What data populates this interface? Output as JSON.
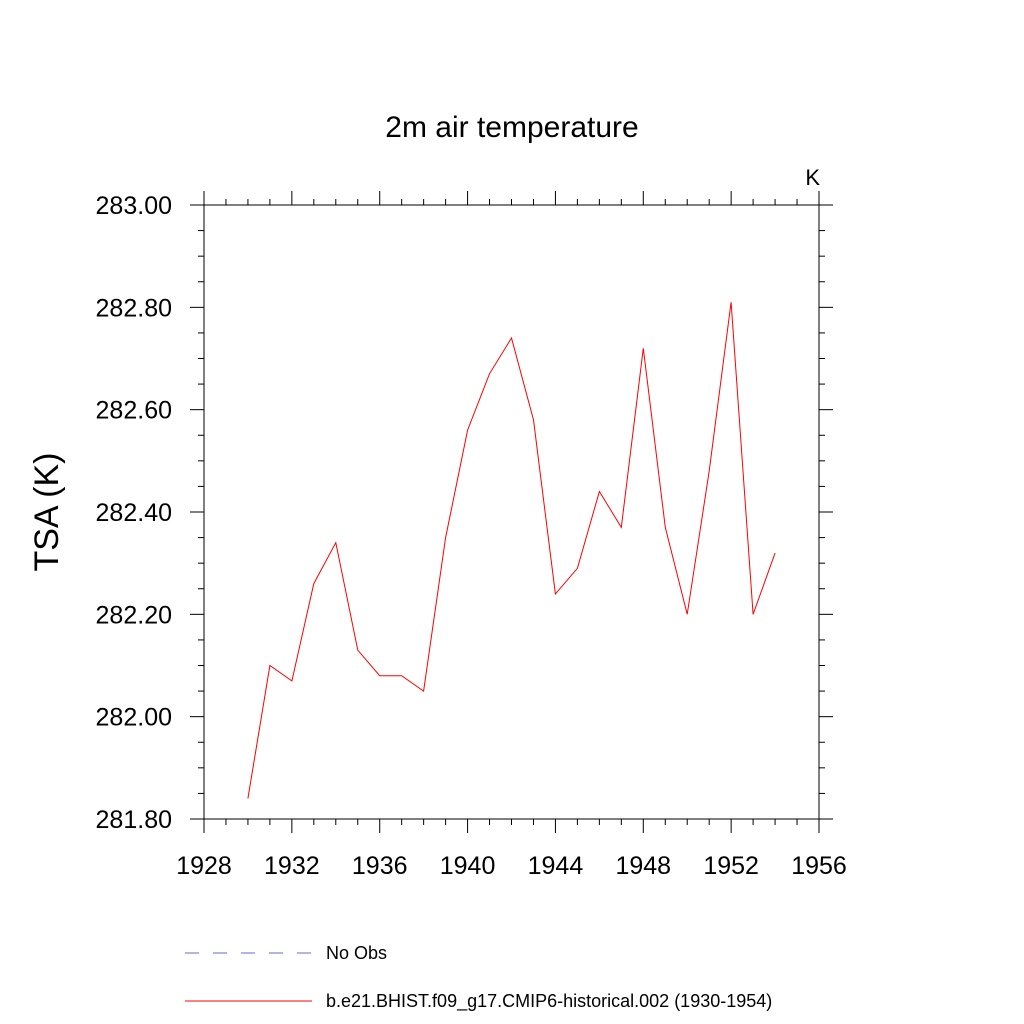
{
  "chart_data": {
    "type": "line",
    "title": "2m air temperature",
    "xlabel": "",
    "ylabel": "TSA  (K)",
    "units_label": "K",
    "xlim": [
      1928,
      1956
    ],
    "ylim": [
      281.8,
      283.0
    ],
    "x_ticks": [
      1928,
      1932,
      1936,
      1940,
      1944,
      1948,
      1952,
      1956
    ],
    "x_tick_labels": [
      "1928",
      "1932",
      "1936",
      "1940",
      "1944",
      "1948",
      "1952",
      "1956"
    ],
    "y_ticks": [
      281.8,
      282.0,
      282.2,
      282.4,
      282.6,
      282.8,
      283.0
    ],
    "y_tick_labels": [
      "281.80",
      "282.00",
      "282.20",
      "282.40",
      "282.60",
      "282.80",
      "283.00"
    ],
    "grid": false,
    "legend_position": "bottom",
    "series": [
      {
        "name": "No Obs",
        "style": "dashed",
        "color": "#6a6ac8",
        "x": [],
        "y": []
      },
      {
        "name": "b.e21.BHIST.f09_g17.CMIP6-historical.002 (1930-1954)",
        "style": "solid",
        "color": "#ff0000",
        "x": [
          1930,
          1931,
          1932,
          1933,
          1934,
          1935,
          1936,
          1937,
          1938,
          1939,
          1940,
          1941,
          1942,
          1943,
          1944,
          1945,
          1946,
          1947,
          1948,
          1949,
          1950,
          1951,
          1952,
          1953,
          1954
        ],
        "y": [
          281.84,
          282.1,
          282.07,
          282.26,
          282.34,
          282.13,
          282.08,
          282.08,
          282.05,
          282.35,
          282.56,
          282.67,
          282.74,
          282.58,
          282.24,
          282.29,
          282.44,
          282.37,
          282.72,
          282.37,
          282.2,
          282.48,
          282.81,
          282.2,
          282.32
        ]
      }
    ]
  }
}
